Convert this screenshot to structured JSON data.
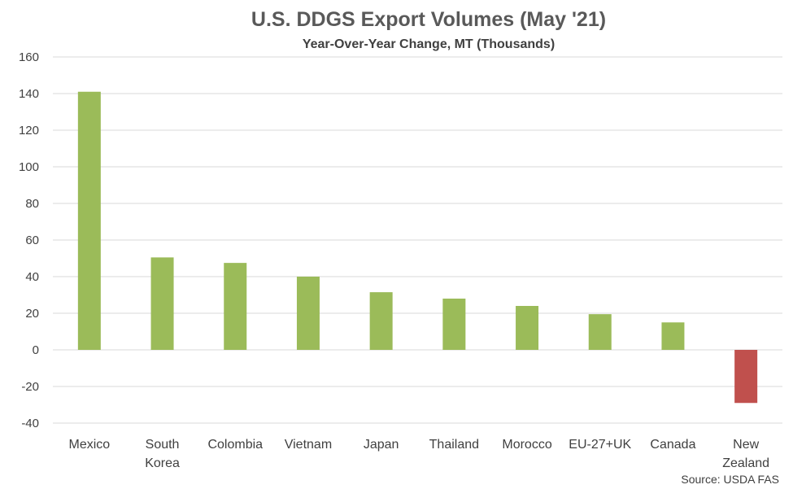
{
  "chart_data": {
    "type": "bar",
    "title": "U.S. DDGS Export Volumes (May '21)",
    "subtitle": "Year-Over-Year Change, MT (Thousands)",
    "xlabel": "",
    "ylabel": "",
    "ylim": [
      -40,
      160
    ],
    "yticks": [
      -40,
      -20,
      0,
      20,
      40,
      60,
      80,
      100,
      120,
      140,
      160
    ],
    "grid": true,
    "legend": "none",
    "categories": [
      [
        "Mexico"
      ],
      [
        "South",
        "Korea"
      ],
      [
        "Colombia"
      ],
      [
        "Vietnam"
      ],
      [
        "Japan"
      ],
      [
        "Thailand"
      ],
      [
        "Morocco"
      ],
      [
        "EU-27+UK"
      ],
      [
        "Canada"
      ],
      [
        "New",
        "Zealand"
      ]
    ],
    "values": [
      141,
      50.5,
      47.5,
      40,
      31.5,
      28,
      24,
      19.5,
      15,
      -29
    ],
    "colors": {
      "positive": "#9bbb59",
      "negative": "#c0504d"
    },
    "source": "Source: USDA FAS"
  }
}
